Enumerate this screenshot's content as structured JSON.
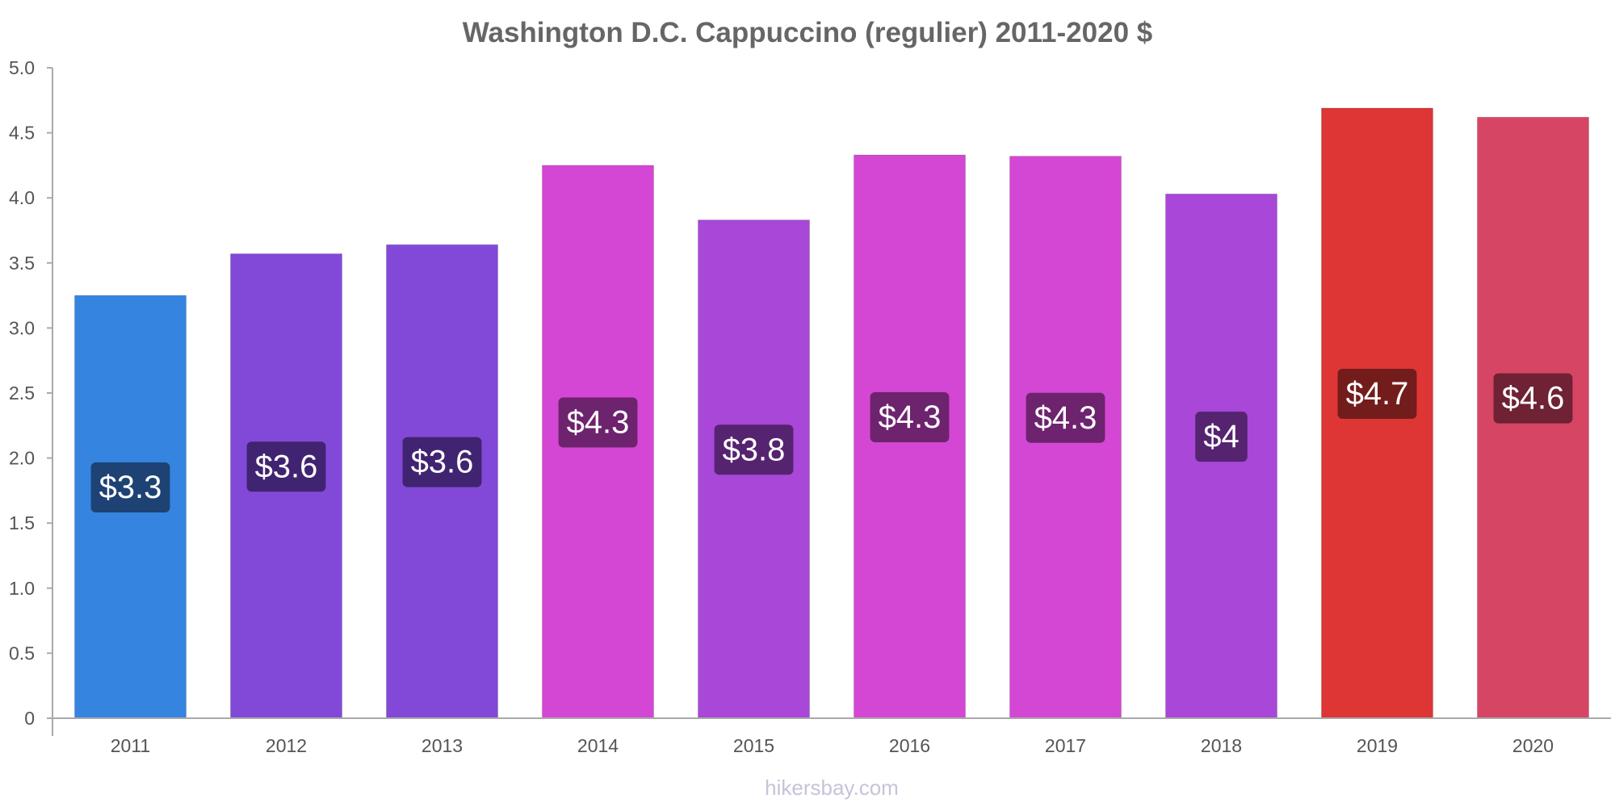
{
  "chart_data": {
    "type": "bar",
    "title": "Washington D.C. Cappuccino (regulier) 2011-2020 $",
    "xlabel": "",
    "ylabel": "",
    "categories": [
      "2011",
      "2012",
      "2013",
      "2014",
      "2015",
      "2016",
      "2017",
      "2018",
      "2019",
      "2020"
    ],
    "values": [
      3.25,
      3.57,
      3.64,
      4.25,
      3.83,
      4.33,
      4.32,
      4.03,
      4.69,
      4.62
    ],
    "data_labels": [
      "$3.3",
      "$3.6",
      "$3.6",
      "$4.3",
      "$3.8",
      "$4.3",
      "$4.3",
      "$4",
      "$4.7",
      "$4.6"
    ],
    "bar_colors": [
      "#3584e0",
      "#8249d9",
      "#8249d9",
      "#d447d4",
      "#a847d8",
      "#d447d4",
      "#d447d4",
      "#a847d8",
      "#de3535",
      "#d64564"
    ],
    "label_bg_colors": [
      "#1d4273",
      "#402471",
      "#402471",
      "#6e236e",
      "#552370",
      "#6e236e",
      "#6e236e",
      "#552370",
      "#731c1c",
      "#6e2233"
    ],
    "ylim": [
      0,
      5.0
    ],
    "yticks": [
      "0",
      "0.5",
      "1.0",
      "1.5",
      "2.0",
      "2.5",
      "3.0",
      "3.5",
      "4.0",
      "4.5",
      "5.0"
    ],
    "grid": false,
    "legend": "none"
  },
  "watermark": "hikersbay.com"
}
